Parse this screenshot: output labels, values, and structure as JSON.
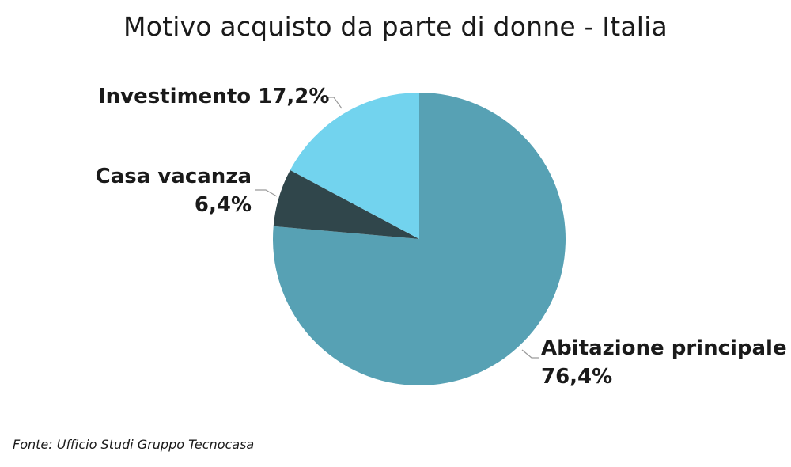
{
  "chart_data": {
    "type": "pie",
    "title": "Motivo acquisto da parte di donne - Italia",
    "slices": [
      {
        "label": "Abitazione principale",
        "value": 76.4,
        "value_text": "76,4%",
        "color": "#57a1b4"
      },
      {
        "label": "Casa vacanza",
        "value": 6.4,
        "value_text": "6,4%",
        "color": "#30464b"
      },
      {
        "label": "Investimento",
        "value": 17.2,
        "value_text": "17,2%",
        "color": "#72d3ee"
      }
    ]
  },
  "source": "Fonte: Ufficio Studi Gruppo Tecnocasa"
}
